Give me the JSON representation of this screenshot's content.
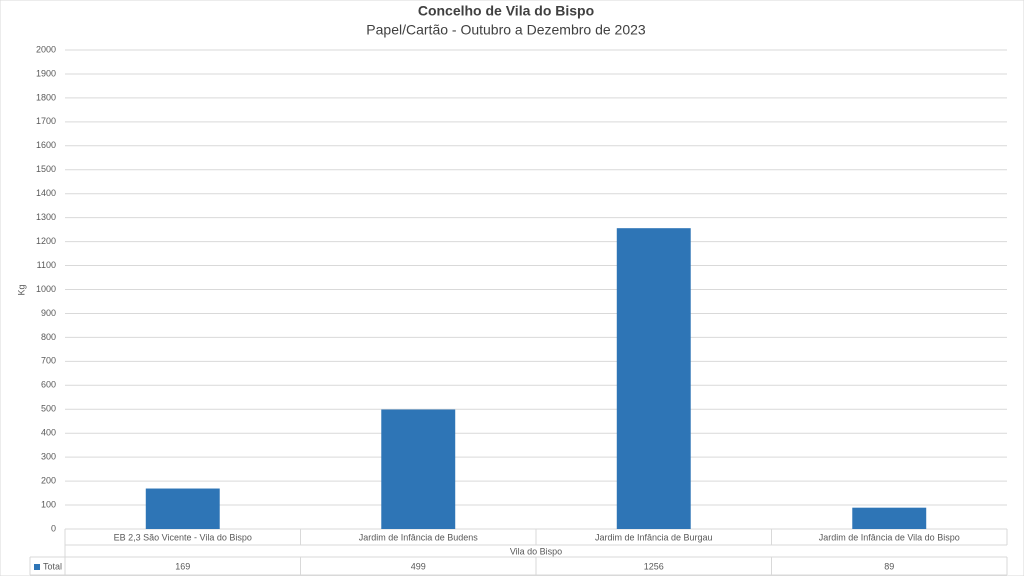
{
  "chart_data": {
    "type": "bar",
    "title": "Concelho de Vila do Bispo",
    "subtitle": "Papel/Cartão - Outubro a Dezembro de 2023",
    "y_label": "Kg",
    "x_label": "Vila do Bispo",
    "categories": [
      "EB 2,3 São Vicente - Vila do Bispo",
      "Jardim de Infância de Budens",
      "Jardim de Infância de Burgau",
      "Jardim de Infância de Vila do Bispo"
    ],
    "series": [
      {
        "name": "Total",
        "color": "#2e75b6",
        "values": [
          169,
          499,
          1256,
          89
        ]
      }
    ],
    "ylim": [
      0,
      2000
    ],
    "yticks": [
      0,
      100,
      200,
      300,
      400,
      500,
      600,
      700,
      800,
      900,
      1000,
      1100,
      1200,
      1300,
      1400,
      1500,
      1600,
      1700,
      1800,
      1900,
      2000
    ],
    "grid": true,
    "data_table": true
  }
}
